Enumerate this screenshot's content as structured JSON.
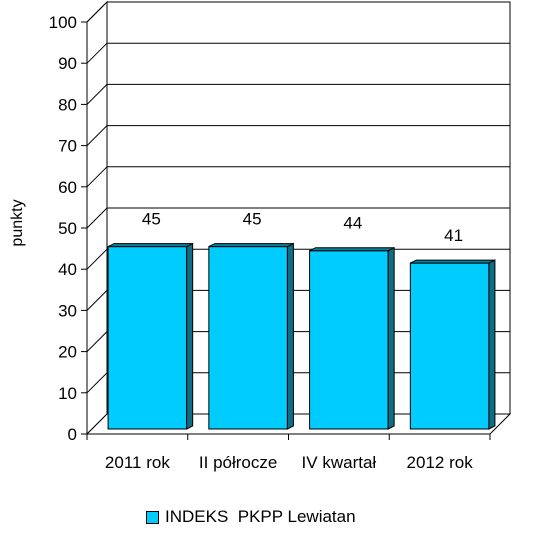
{
  "chart_data": {
    "type": "bar",
    "categories": [
      "2011 rok",
      "II półrocze",
      "IV kwartał",
      "2012 rok"
    ],
    "series": [
      {
        "name": "INDEKS  PKPP Lewiatan",
        "values": [
          45,
          45,
          44,
          41
        ]
      }
    ],
    "data_labels": [
      "45",
      "45",
      "44",
      "41"
    ],
    "ylabel": "punkty",
    "ylim": [
      0,
      100
    ],
    "yticks": [
      0,
      10,
      20,
      30,
      40,
      50,
      60,
      70,
      80,
      90,
      100
    ],
    "grid": true,
    "legend_position": "bottom",
    "bar_color": "#00ccff",
    "bar_side_color": "#0d6e85",
    "bar_top_color": "#0b7f99",
    "back_wall_color": "#ffffff",
    "side_wall_color": "#c0c0c0"
  }
}
